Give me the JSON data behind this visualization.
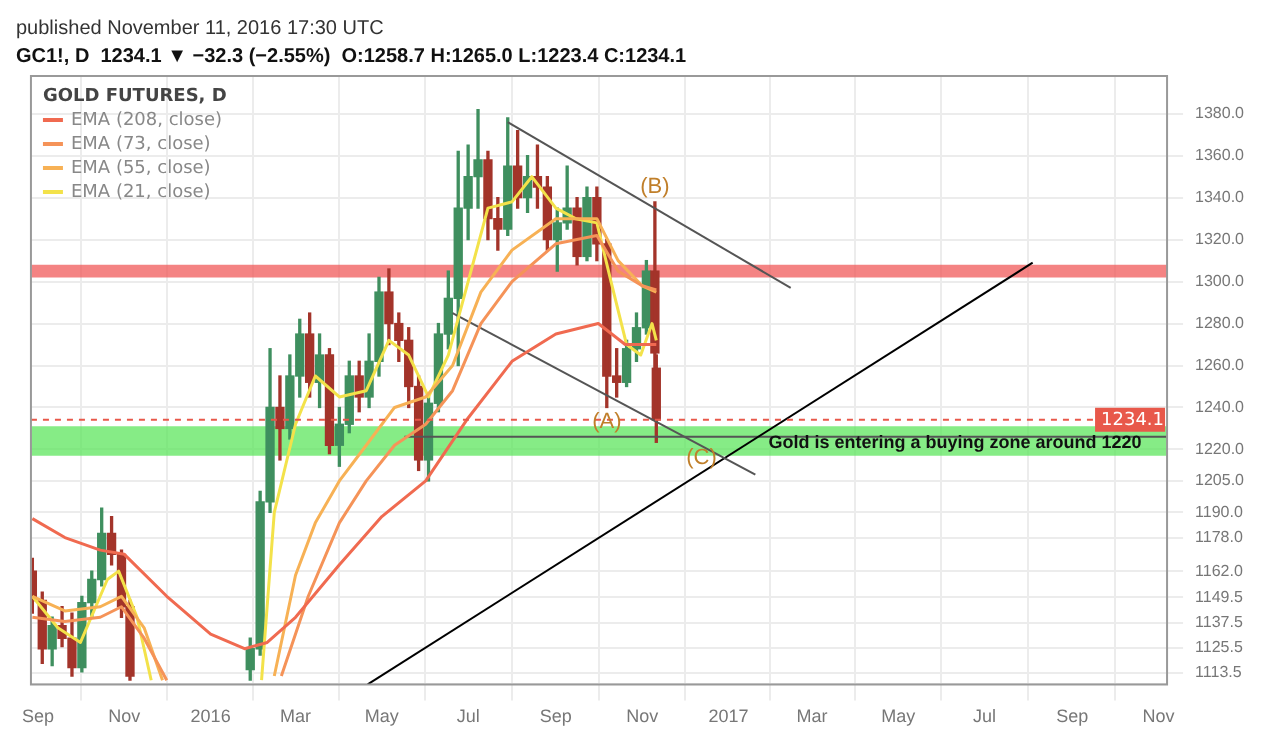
{
  "chart_data": {
    "type": "candlestick",
    "title": "published November 11, 2016 17:30 UTC",
    "subtitle": "GC1!, D  1234.1 ▼ −32.3 (−2.55%)  O:1258.7 H:1265.0 L:1223.4 C:1234.1",
    "legend_title": "GOLD FUTURES, D",
    "x": [
      "2015-08-28",
      "2015-09-04",
      "2015-09-11",
      "2015-09-18",
      "2015-09-25",
      "2015-10-02",
      "2015-10-09",
      "2015-10-16",
      "2015-10-23",
      "2015-10-30",
      "2015-11-05",
      "2016-01-29",
      "2016-02-05",
      "2016-02-12",
      "2016-02-19",
      "2016-02-26",
      "2016-03-04",
      "2016-03-11",
      "2016-03-18",
      "2016-03-25",
      "2016-04-01",
      "2016-04-08",
      "2016-04-15",
      "2016-04-22",
      "2016-04-29",
      "2016-05-06",
      "2016-05-13",
      "2016-05-20",
      "2016-05-27",
      "2016-06-03",
      "2016-06-10",
      "2016-06-17",
      "2016-06-24",
      "2016-07-01",
      "2016-07-08",
      "2016-07-15",
      "2016-07-22",
      "2016-07-29",
      "2016-08-05",
      "2016-08-12",
      "2016-08-19",
      "2016-08-26",
      "2016-09-02",
      "2016-09-09",
      "2016-09-16",
      "2016-09-23",
      "2016-09-30",
      "2016-10-07",
      "2016-10-14",
      "2016-10-21",
      "2016-10-28",
      "2016-11-04",
      "2016-11-10",
      "2016-11-11"
    ],
    "ohlc": [
      [
        1162,
        1168,
        1142,
        1148
      ],
      [
        1148,
        1152,
        1118,
        1125
      ],
      [
        1125,
        1140,
        1117,
        1136
      ],
      [
        1136,
        1145,
        1126,
        1130
      ],
      [
        1130,
        1142,
        1112,
        1116
      ],
      [
        1116,
        1150,
        1114,
        1147
      ],
      [
        1147,
        1162,
        1140,
        1158
      ],
      [
        1158,
        1192,
        1155,
        1180
      ],
      [
        1180,
        1188,
        1165,
        1170
      ],
      [
        1170,
        1172,
        1140,
        1145
      ],
      [
        1145,
        1148,
        1110,
        1112
      ],
      [
        1115,
        1130,
        1110,
        1125
      ],
      [
        1125,
        1200,
        1122,
        1195
      ],
      [
        1195,
        1268,
        1190,
        1240
      ],
      [
        1240,
        1255,
        1215,
        1230
      ],
      [
        1230,
        1265,
        1225,
        1255
      ],
      [
        1255,
        1282,
        1245,
        1275
      ],
      [
        1275,
        1285,
        1245,
        1252
      ],
      [
        1252,
        1275,
        1240,
        1265
      ],
      [
        1265,
        1268,
        1218,
        1222
      ],
      [
        1222,
        1240,
        1212,
        1232
      ],
      [
        1232,
        1262,
        1228,
        1255
      ],
      [
        1255,
        1262,
        1238,
        1245
      ],
      [
        1245,
        1275,
        1240,
        1262
      ],
      [
        1262,
        1302,
        1255,
        1295
      ],
      [
        1295,
        1306,
        1270,
        1280
      ],
      [
        1280,
        1285,
        1262,
        1272
      ],
      [
        1272,
        1278,
        1240,
        1250
      ],
      [
        1250,
        1255,
        1210,
        1215
      ],
      [
        1215,
        1245,
        1205,
        1242
      ],
      [
        1242,
        1280,
        1238,
        1275
      ],
      [
        1275,
        1305,
        1268,
        1292
      ],
      [
        1292,
        1362,
        1260,
        1335
      ],
      [
        1335,
        1365,
        1320,
        1350
      ],
      [
        1350,
        1382,
        1335,
        1358
      ],
      [
        1358,
        1362,
        1320,
        1330
      ],
      [
        1330,
        1340,
        1315,
        1325
      ],
      [
        1325,
        1378,
        1322,
        1355
      ],
      [
        1355,
        1372,
        1335,
        1340
      ],
      [
        1340,
        1360,
        1333,
        1350
      ],
      [
        1350,
        1365,
        1335,
        1345
      ],
      [
        1345,
        1350,
        1315,
        1320
      ],
      [
        1320,
        1335,
        1305,
        1328
      ],
      [
        1328,
        1355,
        1325,
        1335
      ],
      [
        1335,
        1340,
        1308,
        1312
      ],
      [
        1312,
        1345,
        1310,
        1340
      ],
      [
        1340,
        1345,
        1310,
        1318
      ],
      [
        1318,
        1320,
        1240,
        1255
      ],
      [
        1255,
        1268,
        1245,
        1252
      ],
      [
        1252,
        1272,
        1250,
        1268
      ],
      [
        1268,
        1285,
        1262,
        1278
      ],
      [
        1278,
        1310,
        1275,
        1305
      ],
      [
        1305,
        1338,
        1258,
        1266
      ],
      [
        1258.7,
        1265,
        1223.4,
        1234.1
      ]
    ],
    "colors": [
      "#a3342a",
      "#a3342a",
      "#3f8f5f",
      "#a3342a",
      "#a3342a",
      "#3f8f5f",
      "#3f8f5f",
      "#3f8f5f",
      "#a3342a",
      "#a3342a",
      "#a3342a",
      "#3f8f5f",
      "#3f8f5f",
      "#3f8f5f",
      "#a3342a",
      "#3f8f5f",
      "#3f8f5f",
      "#a3342a",
      "#3f8f5f",
      "#a3342a",
      "#3f8f5f",
      "#3f8f5f",
      "#a3342a",
      "#3f8f5f",
      "#3f8f5f",
      "#a3342a",
      "#a3342a",
      "#a3342a",
      "#a3342a",
      "#3f8f5f",
      "#3f8f5f",
      "#3f8f5f",
      "#3f8f5f",
      "#3f8f5f",
      "#3f8f5f",
      "#a3342a",
      "#a3342a",
      "#3f8f5f",
      "#a3342a",
      "#3f8f5f",
      "#a3342a",
      "#a3342a",
      "#3f8f5f",
      "#3f8f5f",
      "#a3342a",
      "#3f8f5f",
      "#a3342a",
      "#a3342a",
      "#a3342a",
      "#3f8f5f",
      "#3f8f5f",
      "#3f8f5f",
      "#a3342a",
      "#a3342a"
    ],
    "series": [
      {
        "type": "line",
        "name": "EMA (208, close)",
        "color": "#f06a50",
        "x": [
          "2015-08-28",
          "2015-09-20",
          "2015-10-15",
          "2015-11-01",
          "2015-12-01",
          "2016-01-01",
          "2016-01-25",
          "2016-02-10",
          "2016-03-01",
          "2016-04-01",
          "2016-05-01",
          "2016-06-01",
          "2016-07-01",
          "2016-08-01",
          "2016-09-01",
          "2016-10-01",
          "2016-10-20",
          "2016-11-11"
        ],
        "values": [
          1187,
          1178,
          1172,
          1170,
          1150,
          1132,
          1125,
          1128,
          1140,
          1165,
          1188,
          1205,
          1235,
          1262,
          1275,
          1280,
          1270,
          1270
        ]
      },
      {
        "type": "line",
        "name": "EMA (73, close)",
        "color": "#f59358",
        "x": [
          "2015-08-28",
          "2015-09-20",
          "2015-10-15",
          "2015-10-30",
          "2015-11-15",
          "2015-12-01",
          "2016-01-01",
          "2016-02-20",
          "2016-03-10",
          "2016-04-01",
          "2016-04-20",
          "2016-05-10",
          "2016-06-01",
          "2016-06-20",
          "2016-07-10",
          "2016-08-01",
          "2016-09-01",
          "2016-09-30",
          "2016-10-15",
          "2016-11-01",
          "2016-11-11"
        ],
        "values": [
          1140,
          1138,
          1140,
          1145,
          1130,
          1110,
          null,
          1112,
          1150,
          1185,
          1205,
          1222,
          1232,
          1248,
          1280,
          1300,
          1318,
          1322,
          1305,
          1298,
          1296
        ]
      },
      {
        "type": "line",
        "name": "EMA (55, close)",
        "color": "#f7b155",
        "x": [
          "2015-08-28",
          "2015-09-20",
          "2015-10-15",
          "2015-10-30",
          "2015-11-15",
          "2015-11-28",
          "2016-01-01",
          "2016-02-15",
          "2016-03-01",
          "2016-03-15",
          "2016-04-01",
          "2016-04-20",
          "2016-05-10",
          "2016-06-01",
          "2016-06-20",
          "2016-07-10",
          "2016-08-01",
          "2016-09-01",
          "2016-09-30",
          "2016-10-15",
          "2016-11-01",
          "2016-11-11"
        ],
        "values": [
          1150,
          1143,
          1145,
          1150,
          1135,
          1110,
          null,
          1112,
          1160,
          1185,
          1205,
          1222,
          1240,
          1245,
          1260,
          1295,
          1315,
          1330,
          1330,
          1310,
          1298,
          1295
        ]
      },
      {
        "type": "line",
        "name": "EMA (21, close)",
        "color": "#f3e24a",
        "x": [
          "2015-08-28",
          "2015-09-15",
          "2015-10-01",
          "2015-10-20",
          "2015-10-28",
          "2015-11-10",
          "2015-11-20",
          "2016-01-01",
          "2016-02-06",
          "2016-02-15",
          "2016-03-01",
          "2016-03-15",
          "2016-04-01",
          "2016-04-20",
          "2016-05-06",
          "2016-05-20",
          "2016-06-03",
          "2016-06-17",
          "2016-07-01",
          "2016-07-15",
          "2016-08-01",
          "2016-08-15",
          "2016-09-01",
          "2016-09-15",
          "2016-09-30",
          "2016-10-10",
          "2016-10-21",
          "2016-10-31",
          "2016-11-08",
          "2016-11-11"
        ],
        "values": [
          1150,
          1135,
          1128,
          1158,
          1162,
          1140,
          1110,
          null,
          1110,
          1190,
          1232,
          1255,
          1245,
          1248,
          1272,
          1265,
          1245,
          1265,
          1300,
          1335,
          1338,
          1350,
          1335,
          1330,
          1328,
          1300,
          1270,
          1265,
          1280,
          1272
        ]
      },
      {
        "type": "line",
        "color": "#555555",
        "x": [
          "2016-07-29",
          "2017-02-14"
        ],
        "values": [
          1376,
          1297
        ]
      },
      {
        "type": "line",
        "color": "#555555",
        "x": [
          "2016-06-20",
          "2017-01-20"
        ],
        "values": [
          1285,
          1208
        ]
      },
      {
        "type": "line",
        "color": "#000000",
        "x": [
          "2016-04-21",
          "2017-08-04"
        ],
        "values": [
          1108,
          1309
        ]
      },
      {
        "type": "line",
        "color": "#555555",
        "x": [
          "2016-05-17",
          "2017-11-07"
        ],
        "values": [
          1226,
          1226
        ]
      }
    ],
    "xlim": [
      "2015-08-27",
      "2017-11-07"
    ],
    "xticks": [
      {
        "value": "2015-09-01",
        "label": "Sep"
      },
      {
        "value": "2015-11-01",
        "label": "Nov"
      },
      {
        "value": "2016-01-01",
        "label": "2016"
      },
      {
        "value": "2016-03-01",
        "label": "Mar"
      },
      {
        "value": "2016-05-01",
        "label": "May"
      },
      {
        "value": "2016-07-01",
        "label": "Jul"
      },
      {
        "value": "2016-09-01",
        "label": "Sep"
      },
      {
        "value": "2016-11-01",
        "label": "Nov"
      },
      {
        "value": "2017-01-01",
        "label": "2017"
      },
      {
        "value": "2017-03-01",
        "label": "Mar"
      },
      {
        "value": "2017-05-01",
        "label": "May"
      },
      {
        "value": "2017-07-01",
        "label": "Jul"
      },
      {
        "value": "2017-09-01",
        "label": "Sep"
      },
      {
        "value": "2017-11-01",
        "label": "Nov"
      }
    ],
    "ylim": [
      1108,
      1398
    ],
    "yticks": [
      {
        "value": 1113.5,
        "label": "1113.5"
      },
      {
        "value": 1125.5,
        "label": "1125.5"
      },
      {
        "value": 1137.5,
        "label": "1137.5"
      },
      {
        "value": 1149.5,
        "label": "1149.5"
      },
      {
        "value": 1162,
        "label": "1162.0"
      },
      {
        "value": 1178,
        "label": "1178.0"
      },
      {
        "value": 1190,
        "label": "1190.0"
      },
      {
        "value": 1205,
        "label": "1205.0"
      },
      {
        "value": 1220,
        "label": "1220.0"
      },
      {
        "value": 1240,
        "label": "1240.0"
      },
      {
        "value": 1260,
        "label": "1260.0"
      },
      {
        "value": 1280,
        "label": "1280.0"
      },
      {
        "value": 1300,
        "label": "1300.0"
      },
      {
        "value": 1320,
        "label": "1320.0"
      },
      {
        "value": 1340,
        "label": "1340.0"
      },
      {
        "value": 1360,
        "label": "1360.0"
      },
      {
        "value": 1380,
        "label": "1380.0"
      }
    ],
    "ref_lines": [
      {
        "axis": "y",
        "value": 1234.1,
        "label": "1234.1",
        "color": "#e8584a",
        "line_style": "dashed"
      }
    ],
    "bands": [
      {
        "axis": "y",
        "from": 1302,
        "to": 1308,
        "color": "#f05a5a"
      },
      {
        "axis": "y",
        "from": 1217,
        "to": 1231,
        "color": "#5ee65e"
      }
    ],
    "annotations": [
      {
        "text": "(A)",
        "x": "2016-10-07",
        "y": 1226
      },
      {
        "text": "(B)",
        "x": "2016-11-10",
        "y": 1338
      },
      {
        "text": "(C)",
        "x": "2016-12-13",
        "y": 1209
      },
      {
        "text": "Gold is entering a buying zone around 1220",
        "x": "2017-01-25",
        "y": 1217
      }
    ],
    "grid": true,
    "legend": "top left"
  }
}
